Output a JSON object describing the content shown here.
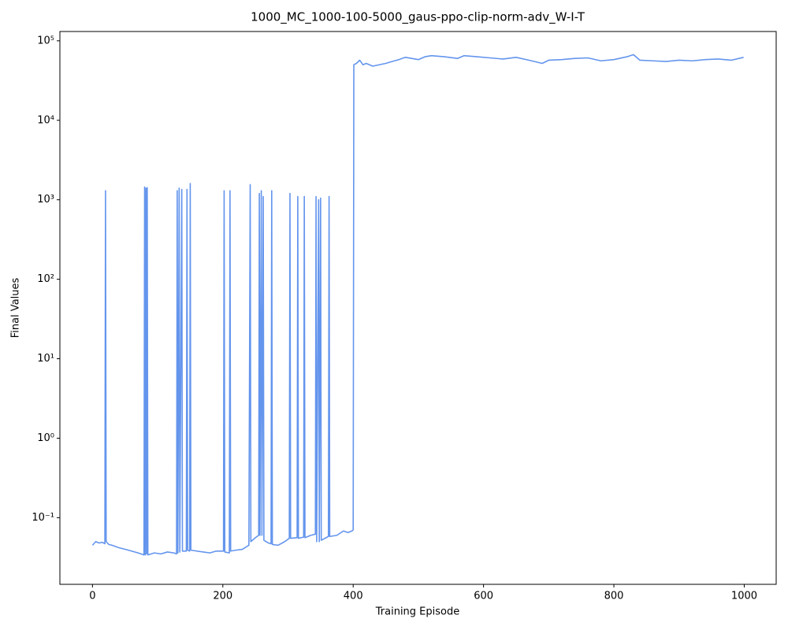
{
  "chart_data": {
    "type": "line",
    "title": "1000_MC_1000-100-5000_gaus-ppo-clip-norm-adv_W-I-T",
    "x_label": "Training Episode",
    "y_label": "Final Values",
    "yscale": "log",
    "xlim": [
      -50,
      1049
    ],
    "ylim": [
      0.0145,
      131000
    ],
    "xticks": [
      0,
      200,
      400,
      600,
      800,
      1000
    ],
    "yticks": [
      {
        "value": 0.1,
        "label": "10⁻¹"
      },
      {
        "value": 1,
        "label": "10⁰"
      },
      {
        "value": 10,
        "label": "10¹"
      },
      {
        "value": 100,
        "label": "10²"
      },
      {
        "value": 1000,
        "label": "10³"
      },
      {
        "value": 10000,
        "label": "10⁴"
      },
      {
        "value": 100000,
        "label": "10⁵"
      }
    ],
    "grid": false,
    "series": [
      {
        "color": "#6495ed",
        "x": [
          0,
          5,
          10,
          15,
          19,
          20,
          21,
          25,
          30,
          40,
          50,
          60,
          70,
          79,
          80,
          81,
          82,
          83,
          84,
          85,
          95,
          105,
          115,
          125,
          129,
          130,
          131,
          133,
          134,
          137,
          138,
          144,
          145,
          146,
          149,
          150,
          151,
          160,
          170,
          180,
          190,
          201,
          202,
          203,
          210,
          211,
          212,
          220,
          230,
          240,
          242,
          243,
          250,
          255,
          256,
          257,
          259,
          260,
          262,
          263,
          270,
          274,
          275,
          276,
          285,
          295,
          302,
          303,
          304,
          314,
          315,
          316,
          324,
          325,
          326,
          335,
          342,
          343,
          344,
          347,
          348,
          350,
          351,
          362,
          363,
          364,
          375,
          385,
          392,
          398,
          400,
          401,
          405,
          410,
          415,
          420,
          430,
          440,
          450,
          460,
          470,
          480,
          490,
          500,
          510,
          520,
          540,
          560,
          570,
          590,
          610,
          630,
          650,
          670,
          690,
          700,
          720,
          740,
          760,
          780,
          800,
          820,
          830,
          840,
          860,
          880,
          900,
          920,
          940,
          960,
          980,
          999
        ],
        "values": [
          0.045,
          0.05,
          0.048,
          0.049,
          0.047,
          1300,
          0.05,
          0.046,
          0.045,
          0.042,
          0.04,
          0.038,
          0.036,
          0.034,
          1450,
          0.034,
          1400,
          0.035,
          1420,
          0.034,
          0.036,
          0.035,
          0.037,
          0.036,
          0.035,
          1300,
          0.036,
          1400,
          0.037,
          1350,
          0.038,
          0.038,
          1350,
          0.039,
          0.038,
          1600,
          0.039,
          0.038,
          0.037,
          0.036,
          0.038,
          0.038,
          1300,
          0.037,
          0.036,
          1300,
          0.038,
          0.039,
          0.04,
          0.045,
          1550,
          0.05,
          0.056,
          0.06,
          1200,
          0.06,
          1300,
          0.06,
          1100,
          0.052,
          0.048,
          0.047,
          1300,
          0.046,
          0.045,
          0.05,
          0.055,
          1200,
          0.055,
          0.056,
          1100,
          0.055,
          0.057,
          1100,
          0.056,
          0.06,
          0.062,
          1100,
          0.05,
          1000,
          0.05,
          1050,
          0.052,
          0.058,
          1100,
          0.058,
          0.06,
          0.068,
          0.065,
          0.068,
          0.07,
          50000,
          52000,
          57000,
          50000,
          52000,
          48000,
          50000,
          52000,
          55000,
          58000,
          62000,
          60000,
          58000,
          63000,
          65000,
          63000,
          60000,
          65000,
          63000,
          61000,
          59000,
          62000,
          57000,
          52000,
          57000,
          58000,
          60000,
          61000,
          56000,
          58000,
          63000,
          67000,
          57000,
          56000,
          55000,
          57000,
          56000,
          58000,
          59000,
          57000,
          62000
        ]
      }
    ]
  }
}
